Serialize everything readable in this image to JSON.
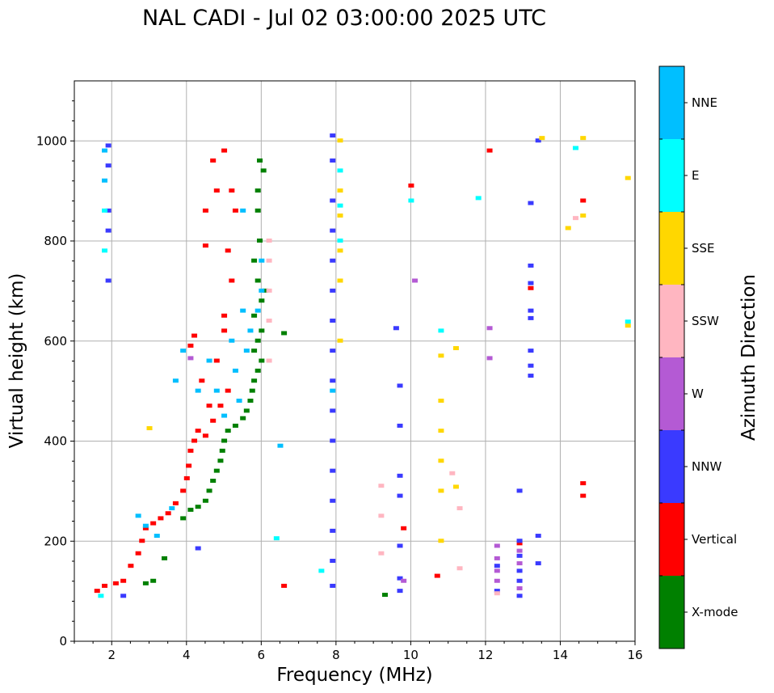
{
  "chart_data": {
    "type": "scatter",
    "title": "NAL CADI - Jul 02 03:00:00 2025 UTC",
    "xlabel": "Frequency (MHz)",
    "ylabel": "Virtual height (km)",
    "xlim": [
      1,
      16
    ],
    "ylim": [
      0,
      1120
    ],
    "xticks": [
      2,
      4,
      6,
      8,
      10,
      12,
      14,
      16
    ],
    "yticks": [
      0,
      200,
      400,
      600,
      800,
      1000
    ],
    "grid": true,
    "colorbar": {
      "label": "Azimuth Direction",
      "categories": [
        {
          "name": "X-mode",
          "color": "#008000"
        },
        {
          "name": "Vertical",
          "color": "#ff0000"
        },
        {
          "name": "NNW",
          "color": "#3a3aff"
        },
        {
          "name": "W",
          "color": "#b45ad4"
        },
        {
          "name": "SSW",
          "color": "#ffb6c1"
        },
        {
          "name": "SSE",
          "color": "#ffd700"
        },
        {
          "name": "E",
          "color": "#00ffff"
        },
        {
          "name": "NNE",
          "color": "#00bfff"
        }
      ]
    },
    "series": [
      {
        "name": "X-mode",
        "points": [
          [
            2.9,
            115
          ],
          [
            3.1,
            120
          ],
          [
            3.4,
            165
          ],
          [
            3.9,
            245
          ],
          [
            4.1,
            262
          ],
          [
            4.3,
            268
          ],
          [
            4.5,
            280
          ],
          [
            4.6,
            300
          ],
          [
            4.7,
            320
          ],
          [
            4.8,
            340
          ],
          [
            4.9,
            360
          ],
          [
            4.95,
            380
          ],
          [
            5.0,
            400
          ],
          [
            5.1,
            420
          ],
          [
            5.3,
            430
          ],
          [
            5.5,
            445
          ],
          [
            5.6,
            460
          ],
          [
            5.7,
            480
          ],
          [
            5.75,
            500
          ],
          [
            5.8,
            520
          ],
          [
            5.9,
            540
          ],
          [
            6.0,
            560
          ],
          [
            5.8,
            580
          ],
          [
            5.9,
            600
          ],
          [
            6.0,
            620
          ],
          [
            5.8,
            650
          ],
          [
            6.0,
            680
          ],
          [
            6.1,
            700
          ],
          [
            5.9,
            720
          ],
          [
            5.8,
            760
          ],
          [
            5.95,
            800
          ],
          [
            5.9,
            860
          ],
          [
            5.9,
            900
          ],
          [
            5.95,
            960
          ],
          [
            6.05,
            940
          ],
          [
            6.6,
            615
          ],
          [
            9.3,
            92
          ]
        ]
      },
      {
        "name": "Vertical",
        "points": [
          [
            1.6,
            100
          ],
          [
            1.8,
            110
          ],
          [
            2.1,
            115
          ],
          [
            2.3,
            120
          ],
          [
            2.5,
            150
          ],
          [
            2.7,
            175
          ],
          [
            2.8,
            200
          ],
          [
            2.9,
            225
          ],
          [
            3.1,
            235
          ],
          [
            3.3,
            245
          ],
          [
            3.5,
            255
          ],
          [
            3.7,
            275
          ],
          [
            3.9,
            300
          ],
          [
            4.0,
            325
          ],
          [
            4.05,
            350
          ],
          [
            4.1,
            380
          ],
          [
            4.2,
            400
          ],
          [
            4.3,
            420
          ],
          [
            4.5,
            410
          ],
          [
            4.7,
            440
          ],
          [
            4.9,
            470
          ],
          [
            5.1,
            500
          ],
          [
            4.1,
            590
          ],
          [
            4.2,
            610
          ],
          [
            4.4,
            520
          ],
          [
            4.6,
            470
          ],
          [
            4.8,
            560
          ],
          [
            5.0,
            620
          ],
          [
            5.0,
            650
          ],
          [
            5.2,
            720
          ],
          [
            5.1,
            780
          ],
          [
            5.3,
            860
          ],
          [
            5.2,
            900
          ],
          [
            4.7,
            960
          ],
          [
            4.8,
            900
          ],
          [
            4.5,
            860
          ],
          [
            4.5,
            790
          ],
          [
            5.0,
            980
          ],
          [
            9.8,
            225
          ],
          [
            10.0,
            910
          ],
          [
            10.7,
            130
          ],
          [
            12.1,
            980
          ],
          [
            12.9,
            195
          ],
          [
            13.2,
            705
          ],
          [
            14.6,
            880
          ],
          [
            14.6,
            315
          ],
          [
            14.6,
            290
          ],
          [
            6.6,
            110
          ]
        ]
      },
      {
        "name": "NNW",
        "points": [
          [
            1.9,
            990
          ],
          [
            1.9,
            950
          ],
          [
            1.9,
            860
          ],
          [
            1.9,
            820
          ],
          [
            1.9,
            720
          ],
          [
            2.3,
            90
          ],
          [
            4.3,
            185
          ],
          [
            7.9,
            1010
          ],
          [
            7.9,
            960
          ],
          [
            7.9,
            880
          ],
          [
            7.9,
            820
          ],
          [
            7.9,
            760
          ],
          [
            7.9,
            700
          ],
          [
            7.9,
            640
          ],
          [
            7.9,
            580
          ],
          [
            7.9,
            520
          ],
          [
            7.9,
            460
          ],
          [
            7.9,
            400
          ],
          [
            7.9,
            340
          ],
          [
            7.9,
            280
          ],
          [
            7.9,
            220
          ],
          [
            7.9,
            160
          ],
          [
            7.9,
            110
          ],
          [
            9.6,
            625
          ],
          [
            9.7,
            510
          ],
          [
            9.7,
            430
          ],
          [
            9.7,
            330
          ],
          [
            9.7,
            290
          ],
          [
            9.7,
            190
          ],
          [
            9.7,
            125
          ],
          [
            9.7,
            100
          ],
          [
            12.3,
            150
          ],
          [
            12.3,
            100
          ],
          [
            12.9,
            300
          ],
          [
            12.9,
            200
          ],
          [
            12.9,
            170
          ],
          [
            12.9,
            140
          ],
          [
            12.9,
            120
          ],
          [
            12.9,
            90
          ],
          [
            13.2,
            875
          ],
          [
            13.2,
            750
          ],
          [
            13.2,
            715
          ],
          [
            13.2,
            660
          ],
          [
            13.2,
            645
          ],
          [
            13.2,
            580
          ],
          [
            13.2,
            550
          ],
          [
            13.2,
            530
          ],
          [
            13.4,
            1000
          ],
          [
            13.4,
            210
          ],
          [
            13.4,
            155
          ]
        ]
      },
      {
        "name": "W",
        "points": [
          [
            4.1,
            565
          ],
          [
            12.1,
            625
          ],
          [
            12.1,
            565
          ],
          [
            12.3,
            190
          ],
          [
            12.3,
            165
          ],
          [
            12.3,
            140
          ],
          [
            12.3,
            120
          ],
          [
            12.9,
            180
          ],
          [
            12.9,
            155
          ],
          [
            12.9,
            105
          ],
          [
            9.8,
            120
          ],
          [
            10.1,
            720
          ]
        ]
      },
      {
        "name": "SSW",
        "points": [
          [
            6.2,
            800
          ],
          [
            6.2,
            760
          ],
          [
            6.2,
            700
          ],
          [
            6.2,
            640
          ],
          [
            6.2,
            560
          ],
          [
            9.2,
            310
          ],
          [
            9.2,
            250
          ],
          [
            9.2,
            175
          ],
          [
            11.1,
            335
          ],
          [
            11.3,
            265
          ],
          [
            11.3,
            145
          ],
          [
            12.3,
            95
          ],
          [
            14.4,
            845
          ]
        ]
      },
      {
        "name": "SSE",
        "points": [
          [
            3.0,
            425
          ],
          [
            8.1,
            1000
          ],
          [
            8.1,
            900
          ],
          [
            8.1,
            850
          ],
          [
            8.1,
            780
          ],
          [
            8.1,
            720
          ],
          [
            8.1,
            600
          ],
          [
            10.8,
            570
          ],
          [
            10.8,
            480
          ],
          [
            10.8,
            420
          ],
          [
            10.8,
            360
          ],
          [
            10.8,
            300
          ],
          [
            10.8,
            200
          ],
          [
            11.2,
            585
          ],
          [
            11.2,
            308
          ],
          [
            13.5,
            1005
          ],
          [
            14.2,
            825
          ],
          [
            14.6,
            1005
          ],
          [
            14.6,
            850
          ],
          [
            15.8,
            630
          ],
          [
            15.8,
            925
          ]
        ]
      },
      {
        "name": "E",
        "points": [
          [
            1.8,
            860
          ],
          [
            1.8,
            780
          ],
          [
            1.7,
            90
          ],
          [
            8.1,
            940
          ],
          [
            8.1,
            870
          ],
          [
            8.1,
            800
          ],
          [
            10.0,
            880
          ],
          [
            10.8,
            620
          ],
          [
            11.8,
            885
          ],
          [
            14.4,
            985
          ],
          [
            15.8,
            638
          ],
          [
            6.4,
            205
          ],
          [
            7.6,
            140
          ]
        ]
      },
      {
        "name": "NNE",
        "points": [
          [
            1.8,
            980
          ],
          [
            1.8,
            920
          ],
          [
            2.7,
            250
          ],
          [
            2.9,
            230
          ],
          [
            3.2,
            210
          ],
          [
            3.6,
            265
          ],
          [
            3.7,
            520
          ],
          [
            3.9,
            580
          ],
          [
            4.3,
            500
          ],
          [
            4.6,
            560
          ],
          [
            4.8,
            500
          ],
          [
            5.0,
            450
          ],
          [
            5.2,
            600
          ],
          [
            5.3,
            540
          ],
          [
            5.4,
            480
          ],
          [
            5.6,
            580
          ],
          [
            5.7,
            620
          ],
          [
            5.9,
            660
          ],
          [
            6.0,
            700
          ],
          [
            6.0,
            760
          ],
          [
            5.5,
            660
          ],
          [
            5.5,
            860
          ],
          [
            6.5,
            390
          ],
          [
            7.9,
            500
          ]
        ]
      }
    ]
  }
}
